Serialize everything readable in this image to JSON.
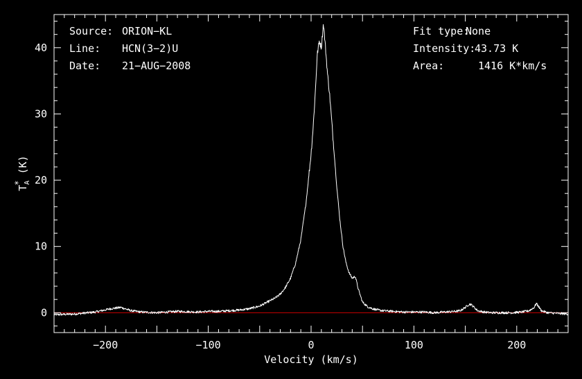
{
  "chart_data": {
    "type": "line",
    "xlabel": "Velocity (km/s)",
    "ylabel": {
      "main": "T",
      "sub": "A",
      "sup": "*",
      "unit": " (K)"
    },
    "xlim": [
      -250,
      250
    ],
    "ylim": [
      -3,
      45
    ],
    "x_ticks": [
      -200,
      -100,
      0,
      100,
      200
    ],
    "x_tick_labels": [
      "−200",
      "−100",
      "0",
      "100",
      "200"
    ],
    "y_ticks": [
      0,
      10,
      20,
      30,
      40
    ],
    "y_tick_labels": [
      "0",
      "10",
      "20",
      "30",
      "40"
    ],
    "grid": false,
    "colors": {
      "background": "#000000",
      "spectrum": "#ffffff",
      "baseline": "#cc0000",
      "axes": "#ffffff"
    },
    "baseline_y": 0,
    "series": [
      {
        "color": "#ffffff",
        "x": [
          -250,
          -230,
          -210,
          -195,
          -185,
          -175,
          -165,
          -150,
          -130,
          -110,
          -100,
          -90,
          -80,
          -70,
          -60,
          -50,
          -45,
          -40,
          -35,
          -30,
          -25,
          -20,
          -15,
          -10,
          -5,
          0,
          2,
          4,
          6,
          8,
          10,
          12,
          14,
          16,
          18,
          20,
          22,
          25,
          28,
          31,
          34,
          37,
          40,
          43,
          46,
          50,
          55,
          60,
          65,
          70,
          80,
          90,
          100,
          110,
          120,
          130,
          140,
          145,
          150,
          153,
          155,
          158,
          162,
          168,
          175,
          185,
          195,
          205,
          212,
          217,
          219,
          221,
          224,
          230,
          240,
          250
        ],
        "y": [
          -0.3,
          -0.2,
          0.1,
          0.6,
          0.8,
          0.3,
          0.1,
          0.0,
          0.2,
          0.1,
          0.2,
          0.2,
          0.3,
          0.4,
          0.6,
          1.0,
          1.4,
          1.8,
          2.2,
          2.8,
          3.8,
          5.2,
          7.5,
          11.0,
          16.5,
          24.0,
          28.0,
          33.0,
          39.0,
          41.0,
          40.0,
          43.7,
          40.0,
          36.0,
          33.0,
          29.0,
          25.0,
          19.0,
          14.0,
          10.0,
          7.5,
          6.0,
          5.2,
          5.5,
          3.5,
          1.6,
          0.9,
          0.6,
          0.4,
          0.3,
          0.2,
          0.1,
          0.1,
          0.1,
          0.0,
          0.1,
          0.2,
          0.3,
          0.8,
          1.2,
          1.3,
          0.9,
          0.3,
          0.1,
          0.0,
          0.0,
          0.0,
          0.1,
          0.3,
          0.8,
          1.4,
          1.0,
          0.3,
          0.0,
          -0.1,
          -0.2
        ]
      }
    ]
  },
  "annotations": {
    "left": [
      {
        "label": "Source:",
        "value": "ORION−KL"
      },
      {
        "label": "Line:",
        "value": "HCN(3−2)U"
      },
      {
        "label": "Date:",
        "value": "21−AUG−2008"
      }
    ],
    "right": [
      {
        "label": "Fit type:",
        "value": "None"
      },
      {
        "label": "Intensity:",
        "value": "43.73 K"
      },
      {
        "label": "Area:",
        "value": "1416 K*km/s"
      }
    ]
  }
}
